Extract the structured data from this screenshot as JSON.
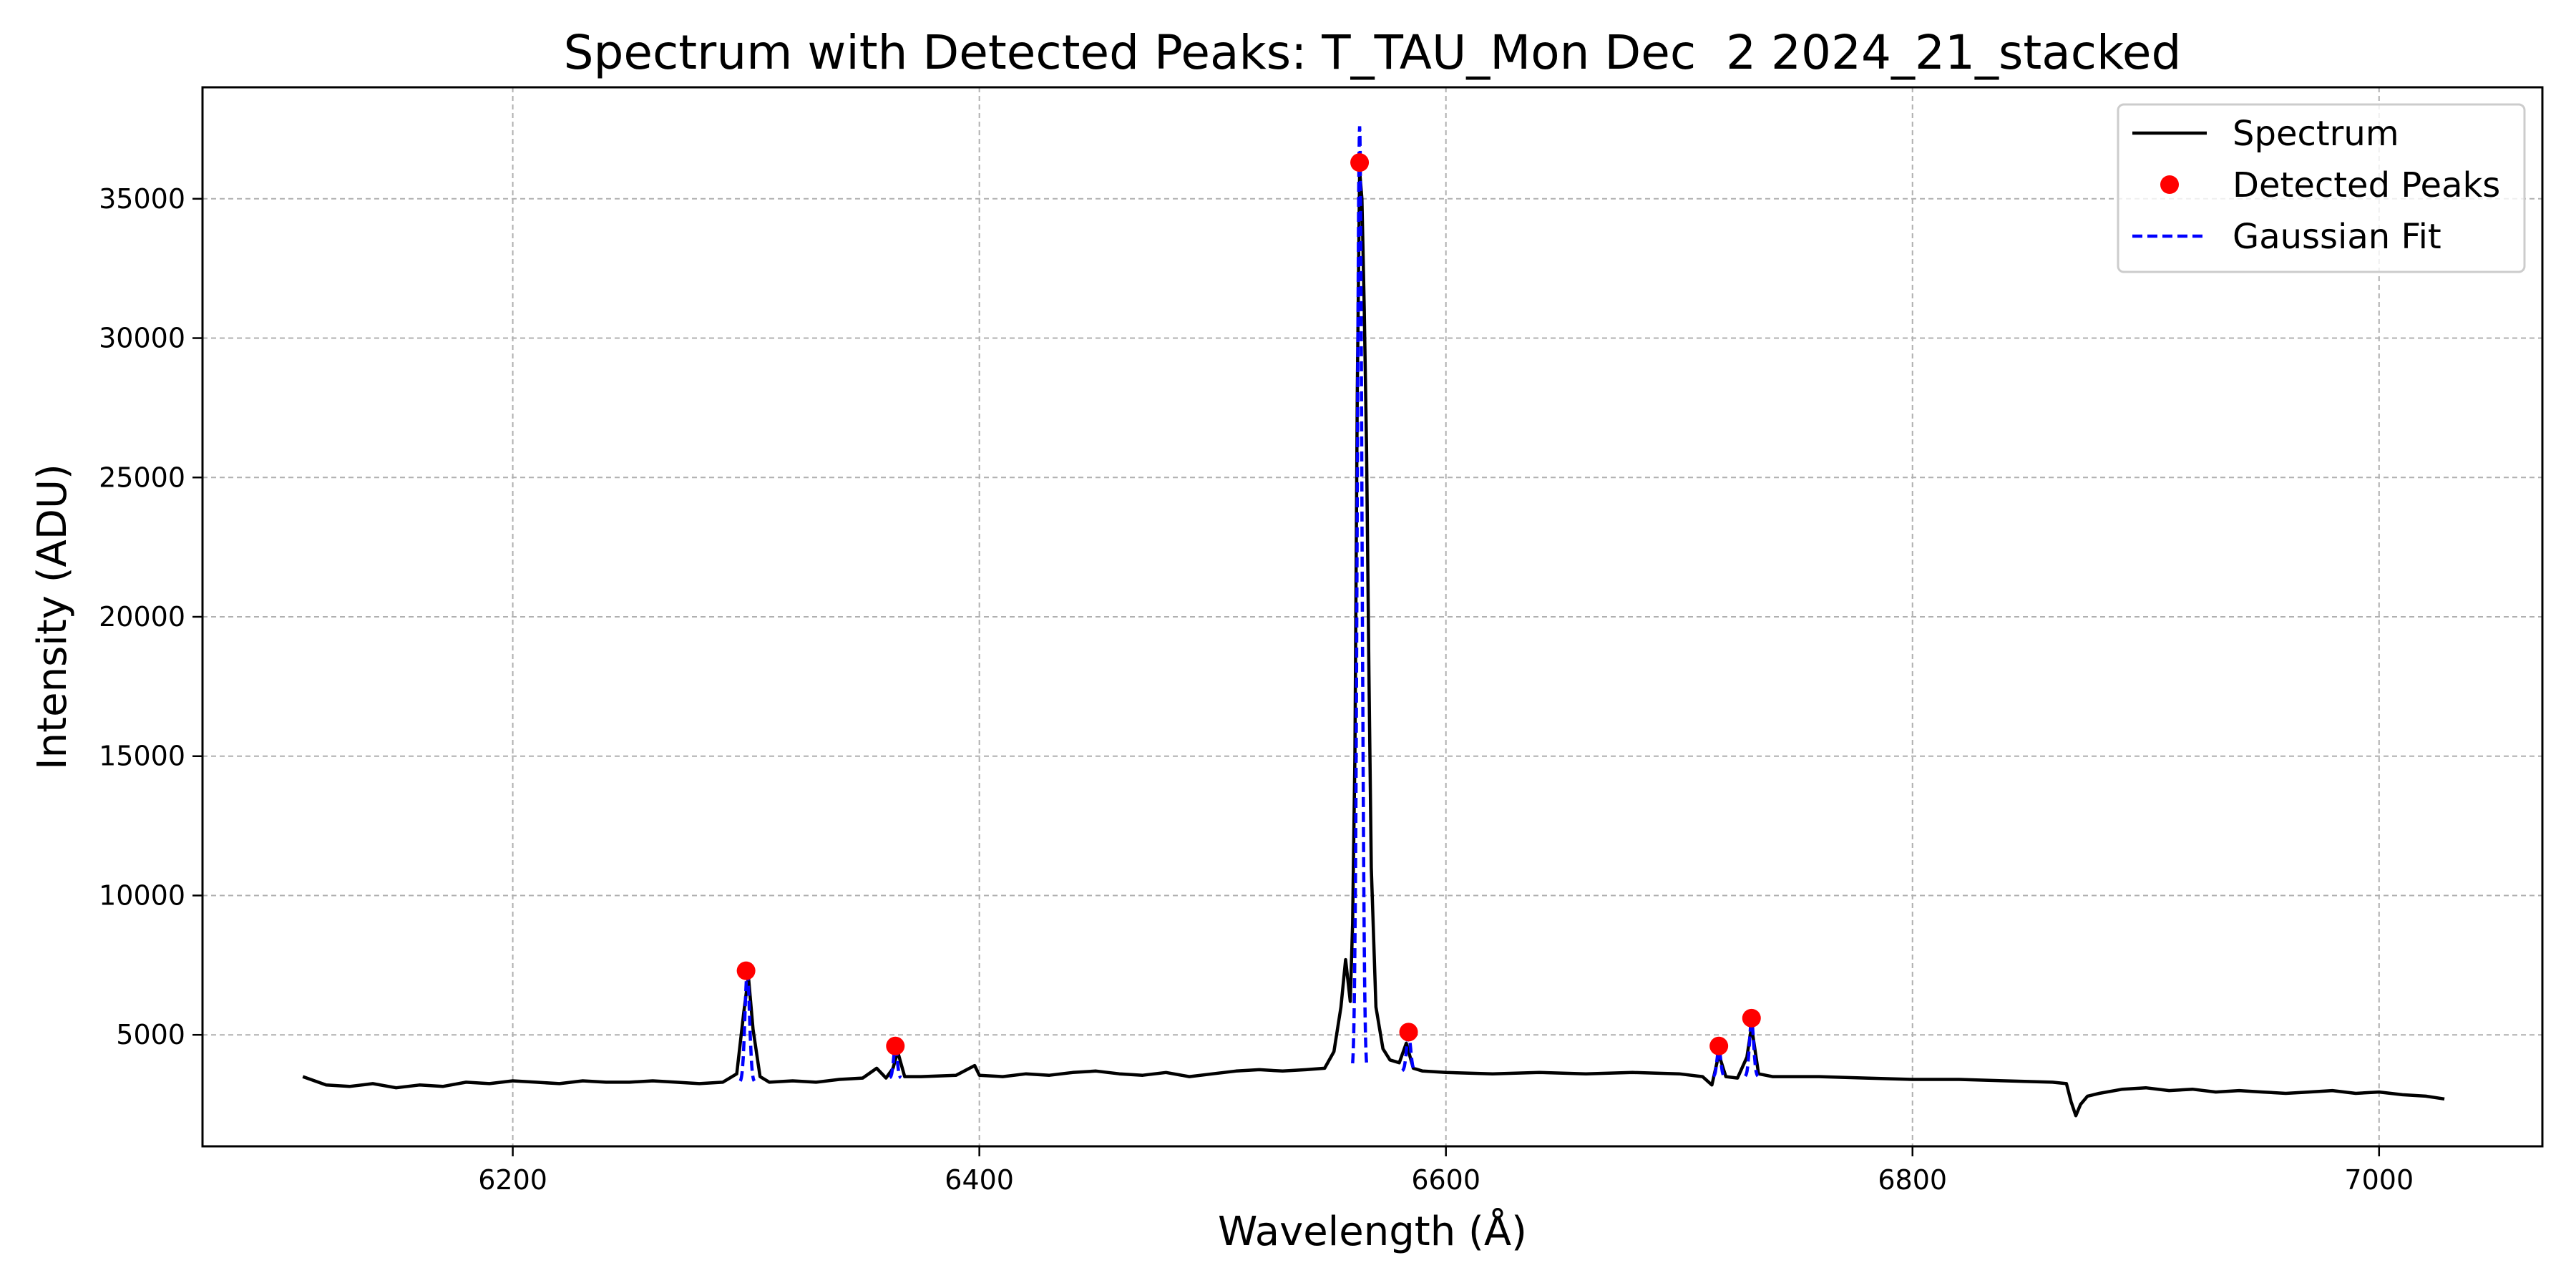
{
  "chart_data": {
    "type": "line",
    "title": "Spectrum with Detected Peaks: T_TAU_Mon Dec  2 2024_21_stacked",
    "xlabel": "Wavelength (Å)",
    "ylabel": "Intensity (ADU)",
    "xlim": [
      6067,
      7070
    ],
    "ylim": [
      1000,
      39000
    ],
    "xticks": [
      6200,
      6400,
      6600,
      6800,
      7000
    ],
    "yticks": [
      5000,
      10000,
      15000,
      20000,
      25000,
      30000,
      35000
    ],
    "grid": true,
    "legend_position": "top-right",
    "colors": {
      "spectrum": "#000000",
      "peaks": "#ff0000",
      "fit": "#0000ff"
    },
    "legend": [
      {
        "name": "Spectrum",
        "style": "line",
        "color": "#000000"
      },
      {
        "name": "Detected Peaks",
        "style": "dot",
        "color": "#ff0000"
      },
      {
        "name": "Gaussian Fit",
        "style": "dashed",
        "color": "#0000ff"
      }
    ],
    "series": [
      {
        "name": "Spectrum",
        "x": [
          6110,
          6120,
          6130,
          6140,
          6150,
          6160,
          6170,
          6180,
          6190,
          6200,
          6210,
          6220,
          6230,
          6240,
          6250,
          6260,
          6270,
          6280,
          6290,
          6296,
          6299,
          6301,
          6303,
          6306,
          6310,
          6320,
          6330,
          6340,
          6350,
          6356,
          6360,
          6363,
          6365,
          6368,
          6375,
          6390,
          6398,
          6400,
          6410,
          6420,
          6430,
          6440,
          6450,
          6460,
          6470,
          6480,
          6490,
          6500,
          6510,
          6520,
          6530,
          6540,
          6548,
          6552,
          6555,
          6557,
          6559,
          6560,
          6561,
          6562,
          6563,
          6564,
          6565,
          6566,
          6567,
          6568,
          6570,
          6573,
          6576,
          6580,
          6583,
          6586,
          6590,
          6600,
          6620,
          6640,
          6660,
          6680,
          6700,
          6710,
          6714,
          6717,
          6720,
          6725,
          6729,
          6731,
          6734,
          6740,
          6760,
          6780,
          6800,
          6820,
          6840,
          6860,
          6866,
          6868,
          6870,
          6872,
          6875,
          6880,
          6890,
          6900,
          6910,
          6920,
          6930,
          6940,
          6950,
          6960,
          6970,
          6980,
          6990,
          7000,
          7010,
          7020,
          7028
        ],
        "y": [
          3500,
          3200,
          3150,
          3250,
          3100,
          3200,
          3150,
          3300,
          3250,
          3350,
          3300,
          3250,
          3350,
          3300,
          3300,
          3350,
          3300,
          3250,
          3300,
          3600,
          5800,
          7100,
          5200,
          3500,
          3300,
          3350,
          3300,
          3400,
          3450,
          3800,
          3450,
          3800,
          4400,
          3500,
          3500,
          3550,
          3900,
          3550,
          3500,
          3600,
          3550,
          3650,
          3700,
          3600,
          3550,
          3650,
          3500,
          3600,
          3700,
          3750,
          3700,
          3750,
          3800,
          4400,
          6000,
          7700,
          6200,
          9000,
          15000,
          28000,
          36000,
          35000,
          31000,
          26000,
          18000,
          11000,
          6000,
          4500,
          4100,
          4000,
          4700,
          3800,
          3700,
          3650,
          3600,
          3650,
          3600,
          3650,
          3600,
          3500,
          3200,
          4300,
          3500,
          3450,
          4200,
          5300,
          3600,
          3500,
          3500,
          3450,
          3400,
          3400,
          3350,
          3300,
          3250,
          2600,
          2100,
          2500,
          2800,
          2900,
          3050,
          3100,
          3000,
          3050,
          2950,
          3000,
          2950,
          2900,
          2950,
          3000,
          2900,
          2950,
          2850,
          2800,
          2700
        ]
      },
      {
        "name": "Detected Peaks",
        "x": [
          6300,
          6364,
          6563,
          6584,
          6717,
          6731
        ],
        "y": [
          7300,
          4600,
          36300,
          5100,
          4600,
          5600
        ]
      },
      {
        "name": "Gaussian Fit",
        "fits": [
          {
            "center": 6300.5,
            "amplitude": 3900,
            "sigma": 1.0,
            "baseline": 3300
          },
          {
            "center": 6364,
            "amplitude": 1100,
            "sigma": 0.8,
            "baseline": 3450
          },
          {
            "center": 6563,
            "amplitude": 34000,
            "sigma": 1.0,
            "baseline": 3600
          },
          {
            "center": 6584,
            "amplitude": 1300,
            "sigma": 0.9,
            "baseline": 3700
          },
          {
            "center": 6717,
            "amplitude": 1000,
            "sigma": 0.8,
            "baseline": 3500
          },
          {
            "center": 6731,
            "amplitude": 2000,
            "sigma": 0.9,
            "baseline": 3500
          }
        ]
      }
    ]
  }
}
